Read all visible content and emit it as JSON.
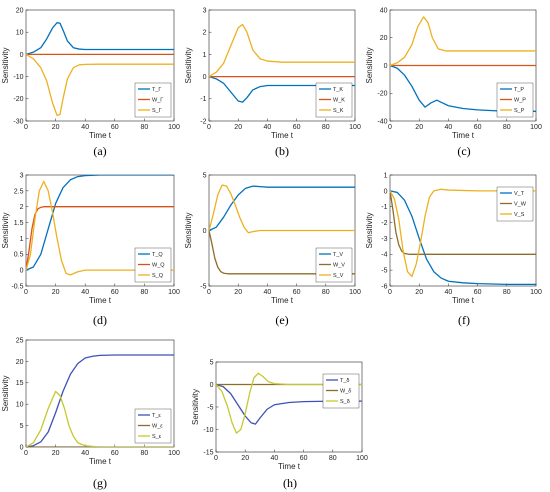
{
  "figure": {
    "colors": {
      "T": "#0072BD",
      "W": "#D95319",
      "S": "#EDB120"
    },
    "panel_colors_override": {
      "e": {
        "T": "#0072BD",
        "W": "#8C6D2C",
        "S": "#EDB120"
      },
      "f": {
        "T": "#0072BD",
        "W": "#8C6D2C",
        "S": "#EDB120"
      },
      "g": {
        "T": "#3F51B5",
        "W": "#8C6D2C",
        "S": "#C5C930"
      },
      "h": {
        "T": "#3F51B5",
        "W": "#8C6D2C",
        "S": "#C5C930"
      }
    }
  },
  "chart_data": [
    {
      "panel": "a",
      "caption": "(a)",
      "type": "line",
      "xlabel": "Time t",
      "ylabel": "Sensitivity",
      "xlim": [
        0,
        100
      ],
      "ylim": [
        -30,
        20
      ],
      "xticks": [
        0,
        20,
        40,
        60,
        80,
        100
      ],
      "yticks": [
        -30,
        -20,
        -10,
        0,
        10,
        20
      ],
      "legend": "bottom-right",
      "series": [
        {
          "name": "T_Γ",
          "key": "T",
          "x": [
            0,
            5,
            10,
            14,
            18,
            21,
            23,
            25,
            28,
            32,
            36,
            40,
            50,
            60,
            70,
            80,
            90,
            100
          ],
          "y": [
            0,
            1,
            3,
            7,
            12,
            14.3,
            14,
            11,
            6,
            3,
            2.4,
            2.2,
            2.2,
            2.2,
            2.2,
            2.2,
            2.2,
            2.2
          ]
        },
        {
          "name": "W_Γ",
          "key": "W",
          "x": [
            0,
            100
          ],
          "y": [
            0,
            0
          ]
        },
        {
          "name": "S_Γ",
          "key": "S",
          "x": [
            0,
            5,
            10,
            14,
            18,
            21,
            23,
            25,
            28,
            32,
            36,
            40,
            50,
            60,
            70,
            80,
            90,
            100
          ],
          "y": [
            0,
            -2,
            -6,
            -12,
            -22,
            -27.5,
            -27,
            -20,
            -11,
            -6,
            -4.7,
            -4.5,
            -4.4,
            -4.4,
            -4.4,
            -4.4,
            -4.4,
            -4.4
          ]
        }
      ]
    },
    {
      "panel": "b",
      "caption": "(b)",
      "type": "line",
      "xlabel": "Time t",
      "ylabel": "Sensitivity",
      "xlim": [
        0,
        100
      ],
      "ylim": [
        -2,
        3
      ],
      "xticks": [
        0,
        20,
        40,
        60,
        80,
        100
      ],
      "yticks": [
        -2,
        -1,
        0,
        1,
        2,
        3
      ],
      "legend": "bottom-right",
      "series": [
        {
          "name": "T_K",
          "key": "T",
          "x": [
            0,
            5,
            10,
            15,
            20,
            23,
            26,
            30,
            35,
            40,
            50,
            60,
            80,
            100
          ],
          "y": [
            0,
            -0.1,
            -0.3,
            -0.7,
            -1.1,
            -1.15,
            -0.95,
            -0.6,
            -0.45,
            -0.4,
            -0.4,
            -0.4,
            -0.4,
            -0.4
          ]
        },
        {
          "name": "W_K",
          "key": "W",
          "x": [
            0,
            100
          ],
          "y": [
            0,
            0
          ]
        },
        {
          "name": "S_K",
          "key": "S",
          "x": [
            0,
            5,
            10,
            15,
            20,
            23,
            26,
            30,
            35,
            40,
            50,
            60,
            80,
            100
          ],
          "y": [
            0,
            0.2,
            0.6,
            1.4,
            2.2,
            2.35,
            2.0,
            1.2,
            0.8,
            0.7,
            0.65,
            0.65,
            0.65,
            0.65
          ]
        }
      ]
    },
    {
      "panel": "c",
      "caption": "(c)",
      "type": "line",
      "xlabel": "Time t",
      "ylabel": "Sensitivity",
      "xlim": [
        0,
        100
      ],
      "ylim": [
        -40,
        40
      ],
      "xticks": [
        0,
        20,
        40,
        60,
        80,
        100
      ],
      "yticks": [
        -40,
        -20,
        0,
        20,
        40
      ],
      "legend": "bottom-right",
      "series": [
        {
          "name": "T_P",
          "key": "T",
          "x": [
            0,
            5,
            10,
            15,
            20,
            24,
            28,
            32,
            36,
            40,
            50,
            60,
            70,
            80,
            90,
            100
          ],
          "y": [
            0,
            -2,
            -7,
            -15,
            -25,
            -30,
            -27,
            -25,
            -27,
            -29,
            -31,
            -32,
            -32.5,
            -33,
            -33,
            -33
          ]
        },
        {
          "name": "W_P",
          "key": "W",
          "x": [
            0,
            100
          ],
          "y": [
            0,
            0
          ]
        },
        {
          "name": "S_P",
          "key": "S",
          "x": [
            0,
            5,
            10,
            15,
            19,
            23,
            26,
            29,
            33,
            38,
            45,
            60,
            80,
            100
          ],
          "y": [
            0,
            2,
            6,
            15,
            28,
            35,
            31,
            20,
            12,
            10.5,
            10.5,
            10.5,
            10.5,
            10.5
          ]
        }
      ]
    },
    {
      "panel": "d",
      "caption": "(d)",
      "type": "line",
      "xlabel": "Time t",
      "ylabel": "Sensitivity",
      "xlim": [
        0,
        100
      ],
      "ylim": [
        -0.5,
        3
      ],
      "xticks": [
        0,
        20,
        40,
        60,
        80,
        100
      ],
      "yticks": [
        -0.5,
        0,
        0.5,
        1,
        1.5,
        2,
        2.5,
        3
      ],
      "legend": "bottom-right",
      "series": [
        {
          "name": "T_Q",
          "key": "T",
          "x": [
            0,
            5,
            10,
            15,
            20,
            25,
            30,
            35,
            40,
            50,
            60,
            80,
            100
          ],
          "y": [
            0,
            0.1,
            0.5,
            1.3,
            2.1,
            2.6,
            2.85,
            2.95,
            2.98,
            3,
            3,
            3,
            3
          ]
        },
        {
          "name": "W_Q",
          "key": "W",
          "x": [
            0,
            2,
            4,
            6,
            8,
            10,
            12,
            15,
            20,
            100
          ],
          "y": [
            0,
            0.6,
            1.3,
            1.75,
            1.93,
            1.98,
            2,
            2,
            2,
            2
          ]
        },
        {
          "name": "S_Q",
          "key": "S",
          "x": [
            0,
            3,
            6,
            9,
            12,
            15,
            18,
            21,
            24,
            27,
            30,
            35,
            40,
            60,
            80,
            100
          ],
          "y": [
            0,
            0.5,
            1.6,
            2.5,
            2.8,
            2.5,
            1.8,
            1.0,
            0.3,
            -0.1,
            -0.15,
            -0.05,
            0,
            0,
            0,
            0
          ]
        }
      ]
    },
    {
      "panel": "e",
      "caption": "(e)",
      "type": "line",
      "xlabel": "Time t",
      "ylabel": "Sensitivity",
      "xlim": [
        0,
        100
      ],
      "ylim": [
        -5,
        5
      ],
      "xticks": [
        0,
        20,
        40,
        60,
        80,
        100
      ],
      "yticks": [
        -5,
        0,
        5
      ],
      "legend": "bottom-right",
      "series": [
        {
          "name": "T_V",
          "key": "T",
          "x": [
            0,
            5,
            10,
            15,
            20,
            25,
            30,
            35,
            40,
            50,
            60,
            80,
            100
          ],
          "y": [
            0,
            0.3,
            1.2,
            2.3,
            3.2,
            3.8,
            4,
            3.95,
            3.9,
            3.9,
            3.9,
            3.9,
            3.9
          ]
        },
        {
          "name": "W_V",
          "key": "W",
          "x": [
            0,
            2,
            4,
            6,
            8,
            10,
            13,
            16,
            20,
            100
          ],
          "y": [
            0,
            -1.2,
            -2.5,
            -3.3,
            -3.7,
            -3.85,
            -3.9,
            -3.9,
            -3.9,
            -3.9
          ]
        },
        {
          "name": "S_V",
          "key": "S",
          "x": [
            0,
            3,
            6,
            9,
            12,
            15,
            18,
            21,
            24,
            27,
            30,
            35,
            40,
            60,
            80,
            100
          ],
          "y": [
            0,
            1.5,
            3.2,
            4.1,
            4,
            3.3,
            2.3,
            1.2,
            0.3,
            -0.2,
            -0.1,
            0,
            0,
            0,
            0,
            0
          ]
        }
      ]
    },
    {
      "panel": "f",
      "caption": "(f)",
      "type": "line",
      "xlabel": "Time t",
      "ylabel": "Sensitivity",
      "xlim": [
        0,
        100
      ],
      "ylim": [
        -6,
        1
      ],
      "xticks": [
        0,
        20,
        40,
        60,
        80,
        100
      ],
      "yticks": [
        -6,
        -5,
        -4,
        -3,
        -2,
        -1,
        0,
        1
      ],
      "legend": "top-right",
      "series": [
        {
          "name": "V_T",
          "key": "T",
          "x": [
            0,
            5,
            10,
            15,
            20,
            25,
            30,
            35,
            40,
            50,
            60,
            80,
            100
          ],
          "y": [
            0,
            -0.1,
            -0.6,
            -1.6,
            -3,
            -4.3,
            -5.1,
            -5.5,
            -5.7,
            -5.8,
            -5.85,
            -5.9,
            -5.9
          ]
        },
        {
          "name": "V_W",
          "key": "W",
          "x": [
            0,
            2,
            4,
            6,
            8,
            10,
            13,
            16,
            20,
            100
          ],
          "y": [
            0,
            -1.2,
            -2.6,
            -3.4,
            -3.8,
            -3.95,
            -4,
            -4,
            -4,
            -4
          ]
        },
        {
          "name": "V_S",
          "key": "S",
          "x": [
            0,
            3,
            6,
            9,
            12,
            15,
            18,
            21,
            24,
            27,
            30,
            35,
            40,
            60,
            80,
            100
          ],
          "y": [
            0,
            -0.5,
            -1.8,
            -3.8,
            -5.1,
            -5.4,
            -4.6,
            -3.2,
            -1.6,
            -0.4,
            0,
            0.1,
            0.05,
            0,
            0,
            0
          ]
        }
      ]
    },
    {
      "panel": "g",
      "caption": "(g)",
      "type": "line",
      "xlabel": "Time t",
      "ylabel": "Sensitivity",
      "xlim": [
        0,
        100
      ],
      "ylim": [
        0,
        25
      ],
      "xticks": [
        0,
        20,
        40,
        60,
        80,
        100
      ],
      "yticks": [
        0,
        5,
        10,
        15,
        20,
        25
      ],
      "legend": "bottom-right",
      "series": [
        {
          "name": "T_ε",
          "key": "T",
          "x": [
            0,
            5,
            10,
            15,
            20,
            25,
            30,
            35,
            40,
            45,
            50,
            60,
            80,
            100
          ],
          "y": [
            0,
            0.3,
            1.2,
            3.5,
            8,
            13,
            17,
            19.5,
            20.8,
            21.2,
            21.4,
            21.5,
            21.5,
            21.5
          ]
        },
        {
          "name": "W_ε",
          "key": "W",
          "x": [
            0,
            100
          ],
          "y": [
            0,
            0
          ]
        },
        {
          "name": "S_ε",
          "key": "S",
          "x": [
            0,
            5,
            10,
            15,
            20,
            23,
            26,
            29,
            32,
            35,
            40,
            50,
            60,
            100
          ],
          "y": [
            0,
            1,
            4,
            9,
            13,
            12,
            9,
            5,
            2.5,
            1,
            0.3,
            0,
            0,
            0
          ]
        }
      ]
    },
    {
      "panel": "h",
      "caption": "(h)",
      "type": "line",
      "xlabel": "Time t",
      "ylabel": "Sensitivity",
      "xlim": [
        0,
        100
      ],
      "ylim": [
        -15,
        5
      ],
      "xticks": [
        0,
        20,
        40,
        60,
        80,
        100
      ],
      "yticks": [
        -15,
        -10,
        -5,
        0,
        5
      ],
      "legend": "top-right",
      "series": [
        {
          "name": "T_δ",
          "key": "T",
          "x": [
            0,
            5,
            10,
            15,
            20,
            24,
            27,
            30,
            35,
            40,
            50,
            60,
            80,
            100
          ],
          "y": [
            0,
            -0.5,
            -2,
            -4.5,
            -7,
            -8.5,
            -8.8,
            -7.5,
            -5.5,
            -4.5,
            -4,
            -3.8,
            -3.7,
            -3.7
          ]
        },
        {
          "name": "W_δ",
          "key": "W",
          "x": [
            0,
            100
          ],
          "y": [
            0,
            0
          ]
        },
        {
          "name": "S_δ",
          "key": "S",
          "x": [
            0,
            4,
            8,
            11,
            14,
            17,
            20,
            23,
            26,
            29,
            32,
            36,
            40,
            50,
            60,
            100
          ],
          "y": [
            0,
            -1.5,
            -5,
            -8.5,
            -10.8,
            -10,
            -6.5,
            -2,
            1.5,
            2.5,
            1.8,
            0.6,
            0.2,
            0,
            0,
            0
          ]
        }
      ]
    }
  ]
}
